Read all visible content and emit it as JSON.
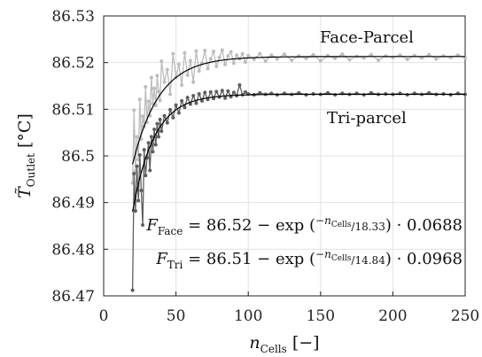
{
  "chart_data": {
    "type": "scatter",
    "xlabel": "n_Cells [−]",
    "ylabel": "T̃_Outlet [°C]",
    "xlim": [
      0,
      250
    ],
    "ylim": [
      86.47,
      86.53
    ],
    "xticks": [
      "0",
      "50",
      "100",
      "150",
      "200",
      "250"
    ],
    "yticks": [
      "86.47",
      "86.48",
      "86.49",
      "86.5",
      "86.51",
      "86.52",
      "86.53"
    ],
    "grid": true,
    "series": [
      {
        "name": "Face-Parcel",
        "color": "#bdbdbd",
        "fit": {
          "a": 86.5213,
          "tau": 18.33,
          "b": 0.0688
        },
        "x": [
          20,
          21,
          22,
          23,
          24,
          25,
          26,
          27,
          28,
          29,
          30,
          31,
          32,
          33,
          34,
          35,
          36,
          37,
          38,
          39,
          40,
          42,
          44,
          46,
          48,
          50,
          52,
          54,
          56,
          58,
          60,
          62,
          64,
          66,
          68,
          70,
          72,
          74,
          76,
          78,
          80,
          82,
          84,
          86,
          88,
          90,
          92,
          94,
          96,
          98,
          100,
          104,
          108,
          112,
          116,
          120,
          125,
          130,
          135,
          140,
          145,
          150,
          155,
          160,
          165,
          170,
          175,
          180,
          185,
          190,
          195,
          200,
          205,
          210,
          215,
          220,
          225,
          230,
          235,
          240,
          245,
          250
        ],
        "y": [
          86.4942,
          86.5098,
          86.4968,
          86.5041,
          86.4992,
          86.5121,
          86.5036,
          86.5085,
          86.5063,
          86.5148,
          86.5072,
          86.5117,
          86.5086,
          86.5168,
          86.5112,
          86.5145,
          86.5108,
          86.5172,
          86.5138,
          86.5119,
          86.5203,
          86.5158,
          86.5185,
          86.5132,
          86.5219,
          86.5168,
          86.5196,
          86.5152,
          86.5221,
          86.5173,
          86.5204,
          86.5158,
          86.5225,
          86.5182,
          86.5199,
          86.5226,
          86.5187,
          86.5208,
          86.5224,
          86.5192,
          86.5211,
          86.5227,
          86.5196,
          86.5214,
          86.5223,
          86.5199,
          86.5216,
          86.5208,
          86.5219,
          86.5201,
          86.5215,
          86.5207,
          86.5219,
          86.5203,
          86.5216,
          86.5208,
          86.5218,
          86.5205,
          86.5214,
          86.5209,
          86.5217,
          86.5204,
          86.5215,
          86.5209,
          86.5218,
          86.5206,
          86.5213,
          86.521,
          86.5217,
          86.5205,
          86.5214,
          86.5211,
          86.5216,
          86.5207,
          86.5215,
          86.521,
          86.5217,
          86.5208,
          86.5214,
          86.5211,
          86.5216,
          86.521
        ]
      },
      {
        "name": "Tri-parcel",
        "color": "#5e5e5e",
        "fit": {
          "a": 86.5132,
          "tau": 14.84,
          "b": 0.0968
        },
        "x": [
          20,
          21,
          22,
          23,
          24,
          25,
          26,
          27,
          28,
          29,
          30,
          31,
          32,
          33,
          34,
          35,
          36,
          37,
          38,
          39,
          40,
          42,
          44,
          46,
          48,
          50,
          52,
          54,
          56,
          58,
          60,
          62,
          64,
          66,
          68,
          70,
          72,
          74,
          76,
          78,
          80,
          82,
          84,
          86,
          88,
          90,
          92,
          94,
          96,
          98,
          100,
          104,
          108,
          112,
          116,
          120,
          125,
          130,
          135,
          140,
          145,
          150,
          155,
          160,
          165,
          170,
          175,
          180,
          185,
          190,
          195,
          200,
          205,
          210,
          215,
          220,
          225,
          230,
          235,
          240,
          245,
          250
        ],
        "y": [
          86.4712,
          86.4962,
          86.4882,
          86.4978,
          86.4904,
          86.5002,
          86.4926,
          86.4852,
          86.5013,
          86.4958,
          86.4996,
          86.5028,
          86.4969,
          86.5041,
          86.5009,
          86.5057,
          86.5024,
          86.5069,
          86.5041,
          86.5078,
          86.5053,
          86.5086,
          86.5071,
          86.5099,
          86.5082,
          86.5109,
          86.5092,
          86.5118,
          86.5104,
          86.5125,
          86.5111,
          86.5129,
          86.5113,
          86.5133,
          86.5118,
          86.5136,
          86.5121,
          86.5137,
          86.5123,
          86.5138,
          86.5126,
          86.514,
          86.5124,
          86.5139,
          86.5127,
          86.5136,
          86.5129,
          86.5152,
          86.5131,
          86.5137,
          86.5133,
          86.5131,
          86.5135,
          86.5132,
          86.5134,
          86.5131,
          86.5134,
          86.5132,
          86.5135,
          86.5131,
          86.5133,
          86.5132,
          86.5135,
          86.5131,
          86.5134,
          86.5132,
          86.5134,
          86.5131,
          86.5135,
          86.5132,
          86.5133,
          86.5132,
          86.5134,
          86.5131,
          86.5134,
          86.5132,
          86.5135,
          86.5132,
          86.5133,
          86.5131,
          86.5134,
          86.5132
        ]
      }
    ],
    "annotations": [
      "Face-Parcel",
      "Tri-parcel"
    ],
    "equations": [
      {
        "lhs": "F",
        "sub": "Face",
        "const": "86.52",
        "num": "−n",
        "numsub": "Cells",
        "den": "18.33",
        "coef": "0.0688"
      },
      {
        "lhs": "F",
        "sub": "Tri",
        "const": "86.51",
        "num": "−n",
        "numsub": "Cells",
        "den": "14.84",
        "coef": "0.0968"
      }
    ]
  }
}
